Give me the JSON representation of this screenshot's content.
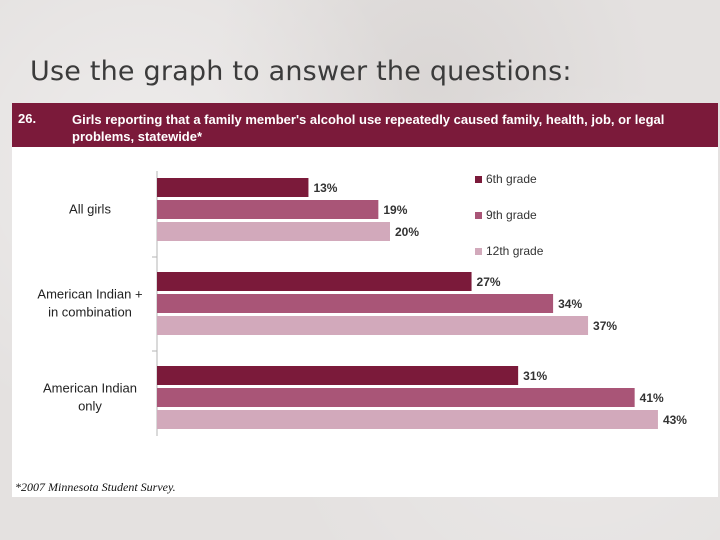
{
  "slide": {
    "title": "Use the graph to answer the questions:"
  },
  "figure": {
    "number": "26.",
    "heading": "Girls reporting that a family member's alcohol use repeatedly caused family, health, job, or legal problems, statewide*",
    "footnote": "*2007 Minnesota Student Survey."
  },
  "chart_data": {
    "type": "bar",
    "orientation": "horizontal",
    "categories": [
      "All girls",
      "American Indian + in combination",
      "American Indian only"
    ],
    "category_label_lines": [
      [
        "All girls"
      ],
      [
        "American Indian +",
        "in combination"
      ],
      [
        "American Indian",
        "only"
      ]
    ],
    "series": [
      {
        "name": "6th grade",
        "color": "#7b1a3a",
        "values": [
          13,
          27,
          31
        ],
        "labels": [
          "13%",
          "27%",
          "31%"
        ]
      },
      {
        "name": "9th grade",
        "color": "#a95577",
        "values": [
          19,
          34,
          41
        ],
        "labels": [
          "19%",
          "34%",
          "41%"
        ]
      },
      {
        "name": "12th grade",
        "color": "#d2a9bb",
        "values": [
          20,
          37,
          43
        ],
        "labels": [
          "20%",
          "37%",
          "43%"
        ]
      }
    ],
    "value_unit": "%",
    "xlim": [
      0,
      50
    ],
    "legend": "right",
    "grid": false,
    "title": "Girls reporting that a family member's alcohol use repeatedly caused family, health, job, or legal problems, statewide*"
  }
}
